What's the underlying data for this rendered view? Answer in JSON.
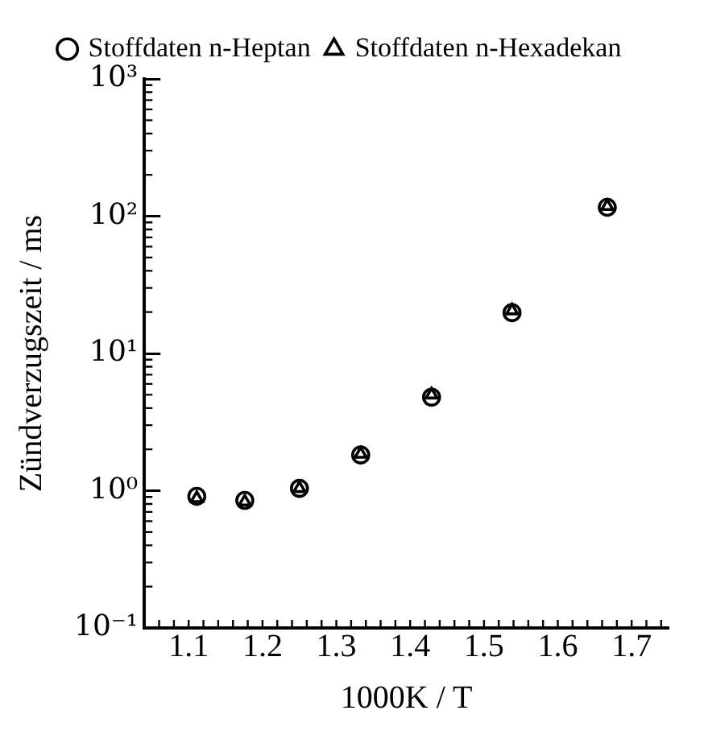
{
  "chart_data": {
    "type": "scatter",
    "xlabel": "1000K / T",
    "ylabel": "Zündverzugszeit / ms",
    "x": [
      1.111,
      1.176,
      1.25,
      1.333,
      1.429,
      1.538,
      1.667
    ],
    "series": [
      {
        "name": "Stoffdaten n-Heptan",
        "color": "#000000",
        "marker": "circle",
        "values": [
          0.91,
          0.85,
          1.04,
          1.82,
          4.8,
          19.8,
          116
        ]
      },
      {
        "name": "Stoffdaten n-Hexadekan",
        "color": "#000000",
        "marker": "triangle",
        "values": [
          0.88,
          0.83,
          1.04,
          1.85,
          5.0,
          20.5,
          118
        ]
      }
    ],
    "xlim": [
      1.04,
      1.75
    ],
    "xticks": [
      1.1,
      1.2,
      1.3,
      1.4,
      1.5,
      1.6,
      1.7
    ],
    "ylim": [
      0.1,
      1000
    ],
    "yticks": [
      {
        "value": 0.1,
        "label": "10⁻¹"
      },
      {
        "value": 1,
        "label": "10⁰"
      },
      {
        "value": 10,
        "label": "10¹"
      },
      {
        "value": 100,
        "label": "10²"
      },
      {
        "value": 1000,
        "label": "10³"
      }
    ],
    "log": "y",
    "grid": false,
    "legend": "top"
  }
}
